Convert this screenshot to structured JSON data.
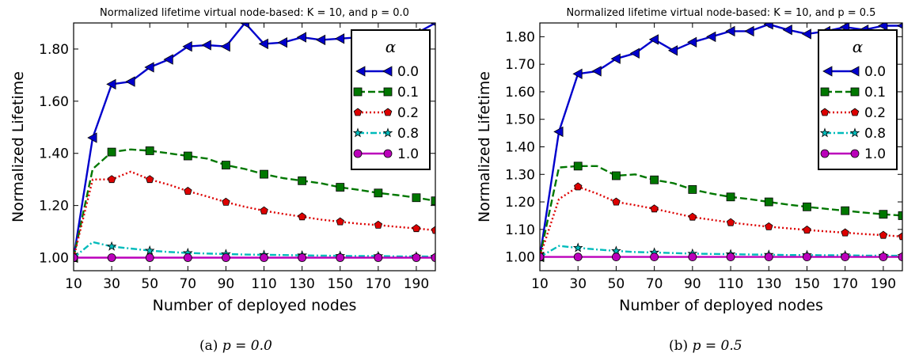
{
  "chart_data": [
    {
      "type": "line",
      "title": "Normalized lifetime virtual node-based: K = 10, and p = 0.0",
      "xlabel": "Number of deployed nodes",
      "ylabel": "Normalized Lifetime",
      "caption_prefix": "(a) ",
      "caption_math": "p = 0.0",
      "xlim": [
        10,
        200
      ],
      "ylim": [
        0.95,
        1.9
      ],
      "xticks": [
        10,
        30,
        50,
        70,
        90,
        110,
        130,
        150,
        170,
        190
      ],
      "yticks": [
        1.0,
        1.2,
        1.4,
        1.6,
        1.8
      ],
      "ytick_labels": [
        "1.00",
        "1.20",
        "1.40",
        "1.60",
        "1.80"
      ],
      "grid": false,
      "legend_title": "α",
      "legend_loc": "top-right",
      "x": [
        10,
        20,
        30,
        40,
        50,
        60,
        70,
        80,
        90,
        100,
        110,
        120,
        130,
        140,
        150,
        160,
        170,
        180,
        190,
        200
      ],
      "series": [
        {
          "name": "0.0",
          "color": "#0000cc",
          "marker": "triangle-left",
          "dash": "solid",
          "values": [
            1.0,
            1.46,
            1.665,
            1.675,
            1.73,
            1.76,
            1.81,
            1.815,
            1.81,
            1.9,
            1.82,
            1.825,
            1.845,
            1.835,
            1.84,
            1.845,
            1.84,
            1.845,
            1.86,
            1.9
          ]
        },
        {
          "name": "0.1",
          "color": "#007700",
          "marker": "square",
          "dash": "dashed",
          "values": [
            1.0,
            1.34,
            1.405,
            1.415,
            1.41,
            1.4,
            1.39,
            1.38,
            1.355,
            1.34,
            1.32,
            1.305,
            1.295,
            1.285,
            1.27,
            1.26,
            1.248,
            1.24,
            1.23,
            1.218
          ]
        },
        {
          "name": "0.2",
          "color": "#dd0000",
          "marker": "pentagon",
          "dash": "dotted",
          "values": [
            1.0,
            1.3,
            1.3,
            1.33,
            1.3,
            1.28,
            1.255,
            1.235,
            1.213,
            1.195,
            1.18,
            1.168,
            1.157,
            1.146,
            1.138,
            1.13,
            1.125,
            1.118,
            1.112,
            1.105
          ]
        },
        {
          "name": "0.8",
          "color": "#00bbbb",
          "marker": "star",
          "dash": "dashdot",
          "values": [
            1.0,
            1.06,
            1.043,
            1.035,
            1.027,
            1.022,
            1.018,
            1.016,
            1.014,
            1.012,
            1.011,
            1.01,
            1.009,
            1.008,
            1.007,
            1.006,
            1.006,
            1.005,
            1.005,
            1.004
          ]
        },
        {
          "name": "1.0",
          "color": "#bb00bb",
          "marker": "circle",
          "dash": "solid",
          "values": [
            1.0,
            1.0,
            1.0,
            1.0,
            1.0,
            1.0,
            1.0,
            1.0,
            1.0,
            1.0,
            1.0,
            1.0,
            1.0,
            1.0,
            1.0,
            1.0,
            1.0,
            1.0,
            1.0,
            1.0
          ]
        }
      ]
    },
    {
      "type": "line",
      "title": "Normalized lifetime virtual node-based: K = 10, and p = 0.5",
      "xlabel": "Number of deployed nodes",
      "ylabel": "Normalized Lifetime",
      "caption_prefix": "(b) ",
      "caption_math": "p = 0.5",
      "xlim": [
        10,
        200
      ],
      "ylim": [
        0.95,
        1.85
      ],
      "xticks": [
        10,
        30,
        50,
        70,
        90,
        110,
        130,
        150,
        170,
        190
      ],
      "yticks": [
        1.0,
        1.1,
        1.2,
        1.3,
        1.4,
        1.5,
        1.6,
        1.7,
        1.8
      ],
      "ytick_labels": [
        "1.00",
        "1.10",
        "1.20",
        "1.30",
        "1.40",
        "1.50",
        "1.60",
        "1.70",
        "1.80"
      ],
      "grid": false,
      "legend_title": "α",
      "legend_loc": "top-right",
      "x": [
        10,
        20,
        30,
        40,
        50,
        60,
        70,
        80,
        90,
        100,
        110,
        120,
        130,
        140,
        150,
        160,
        170,
        180,
        190,
        200
      ],
      "series": [
        {
          "name": "0.0",
          "color": "#0000cc",
          "marker": "triangle-left",
          "dash": "solid",
          "values": [
            1.0,
            1.455,
            1.665,
            1.675,
            1.72,
            1.74,
            1.79,
            1.75,
            1.78,
            1.8,
            1.82,
            1.82,
            1.845,
            1.825,
            1.81,
            1.82,
            1.835,
            1.825,
            1.84,
            1.84
          ]
        },
        {
          "name": "0.1",
          "color": "#007700",
          "marker": "square",
          "dash": "dashed",
          "values": [
            1.0,
            1.325,
            1.33,
            1.33,
            1.295,
            1.3,
            1.28,
            1.268,
            1.245,
            1.23,
            1.218,
            1.21,
            1.2,
            1.19,
            1.182,
            1.175,
            1.168,
            1.161,
            1.155,
            1.15
          ]
        },
        {
          "name": "0.2",
          "color": "#dd0000",
          "marker": "pentagon",
          "dash": "dotted",
          "values": [
            1.0,
            1.21,
            1.255,
            1.23,
            1.2,
            1.188,
            1.175,
            1.16,
            1.145,
            1.135,
            1.125,
            1.117,
            1.11,
            1.104,
            1.098,
            1.093,
            1.088,
            1.083,
            1.079,
            1.074
          ]
        },
        {
          "name": "0.8",
          "color": "#00bbbb",
          "marker": "star",
          "dash": "dashdot",
          "values": [
            1.0,
            1.04,
            1.033,
            1.027,
            1.022,
            1.018,
            1.016,
            1.014,
            1.012,
            1.011,
            1.01,
            1.009,
            1.008,
            1.007,
            1.007,
            1.006,
            1.006,
            1.005,
            1.005,
            1.004
          ]
        },
        {
          "name": "1.0",
          "color": "#bb00bb",
          "marker": "circle",
          "dash": "solid",
          "values": [
            1.0,
            1.0,
            1.0,
            1.0,
            1.0,
            1.0,
            1.0,
            1.0,
            1.0,
            1.0,
            1.0,
            1.0,
            1.0,
            1.0,
            1.0,
            1.0,
            1.0,
            1.0,
            1.0,
            1.0
          ]
        }
      ]
    }
  ]
}
